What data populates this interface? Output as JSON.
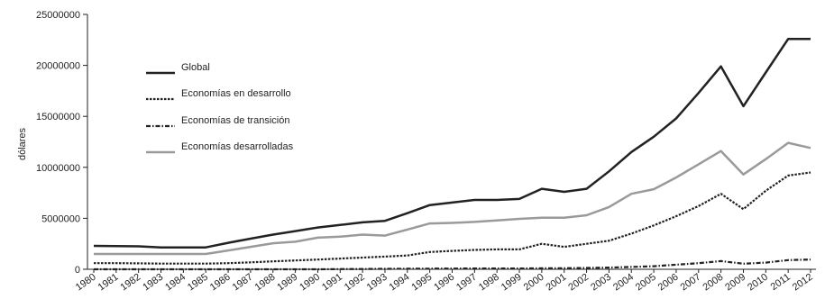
{
  "chart_data": {
    "type": "line",
    "title": "",
    "xlabel": "",
    "ylabel": "dólares",
    "ylim": [
      0,
      25000000
    ],
    "yticks": [
      0,
      5000000,
      10000000,
      15000000,
      20000000,
      25000000
    ],
    "ytick_labels": [
      "0",
      "5000000",
      "10000000",
      "15000000",
      "20000000",
      "25000000"
    ],
    "categories": [
      "1980",
      "1981",
      "1982",
      "1983",
      "1984",
      "1985",
      "1986",
      "1987",
      "1988",
      "1989",
      "1990",
      "1991",
      "1992",
      "1993",
      "1994",
      "1995",
      "1996",
      "1997",
      "1998",
      "1999",
      "2000",
      "2001",
      "2002",
      "2003",
      "2004",
      "2005",
      "2006",
      "2007",
      "2008",
      "2009",
      "2010",
      "2011",
      "2012"
    ],
    "grid": false,
    "legend_position": "upper-left",
    "series": [
      {
        "name": "Global",
        "color": "#222222",
        "dash": "solid",
        "values": [
          2300000,
          2280000,
          2250000,
          2150000,
          2150000,
          2150000,
          2600000,
          3000000,
          3400000,
          3750000,
          4100000,
          4350000,
          4600000,
          4750000,
          5500000,
          6300000,
          6550000,
          6800000,
          6800000,
          6900000,
          7900000,
          7600000,
          7900000,
          9600000,
          11500000,
          13000000,
          14800000,
          17300000,
          19900000,
          16000000,
          19300000,
          22600000,
          22600000
        ]
      },
      {
        "name": "Economías en desarrollo",
        "color": "#222222",
        "dash": "dotted",
        "values": [
          600000,
          600000,
          580000,
          560000,
          560000,
          560000,
          600000,
          680000,
          780000,
          870000,
          950000,
          1050000,
          1150000,
          1250000,
          1350000,
          1700000,
          1800000,
          1900000,
          1950000,
          1950000,
          2500000,
          2200000,
          2500000,
          2800000,
          3500000,
          4300000,
          5200000,
          6200000,
          7400000,
          5900000,
          7700000,
          9200000,
          9500000
        ]
      },
      {
        "name": "Economías de transición",
        "color": "#222222",
        "dash": "dashdot",
        "values": [
          0,
          0,
          0,
          0,
          0,
          0,
          0,
          0,
          0,
          0,
          0,
          20000,
          30000,
          40000,
          50000,
          60000,
          70000,
          80000,
          80000,
          80000,
          100000,
          110000,
          130000,
          170000,
          230000,
          300000,
          450000,
          600000,
          800000,
          550000,
          650000,
          900000,
          950000
        ]
      },
      {
        "name": "Economías desarrolladas",
        "color": "#9a9a9a",
        "dash": "solid",
        "values": [
          1500000,
          1500000,
          1500000,
          1500000,
          1500000,
          1500000,
          1850000,
          2200000,
          2550000,
          2700000,
          3100000,
          3200000,
          3400000,
          3300000,
          3900000,
          4500000,
          4550000,
          4650000,
          4800000,
          4950000,
          5050000,
          5050000,
          5300000,
          6100000,
          7400000,
          7850000,
          9000000,
          10300000,
          11600000,
          9300000,
          10800000,
          12400000,
          11900000
        ]
      }
    ]
  }
}
